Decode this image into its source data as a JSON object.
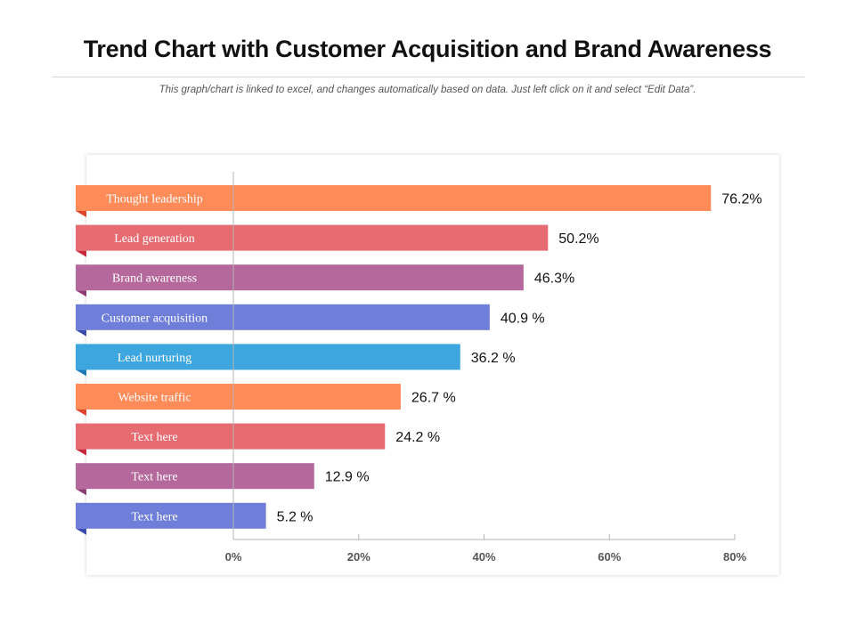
{
  "header": {
    "title": "Trend Chart with Customer Acquisition and Brand Awareness",
    "subtitle": "This graph/chart is linked to excel, and changes automatically  based on data.  Just left click on it and select “Edit Data”."
  },
  "chart_data": {
    "type": "bar",
    "orientation": "horizontal",
    "title": "",
    "xlabel": "",
    "ylabel": "",
    "xlim": [
      0,
      80
    ],
    "ticks": [
      0,
      20,
      40,
      60,
      80
    ],
    "tick_labels": [
      "0%",
      "20%",
      "40%",
      "60%",
      "80%"
    ],
    "grid": false,
    "categories": [
      "Thought leadership",
      "Lead generation",
      "Brand awareness",
      "Customer acquisition",
      "Lead nurturing",
      "Website traffic",
      "Text here",
      "Text here",
      "Text here"
    ],
    "values": [
      76.2,
      50.2,
      46.3,
      40.9,
      36.2,
      26.7,
      24.2,
      12.9,
      5.2
    ],
    "value_labels": [
      "76.2%",
      "50.2%",
      "46.3%",
      "40.9 %",
      "36.2 %",
      "26.7 %",
      "24.2 %",
      "12.9 %",
      "5.2 %"
    ],
    "colors": [
      "#FF8B59",
      "#E76C72",
      "#B5689C",
      "#6F7FD9",
      "#3DA6DF",
      "#FF8B59",
      "#E76C72",
      "#B5689C",
      "#6F7FD9"
    ],
    "fold_colors": [
      "#E0442A",
      "#C8283A",
      "#8E3B74",
      "#3A4AAE",
      "#1D78B8",
      "#E0442A",
      "#C8283A",
      "#8E3B74",
      "#3A4AAE"
    ]
  }
}
